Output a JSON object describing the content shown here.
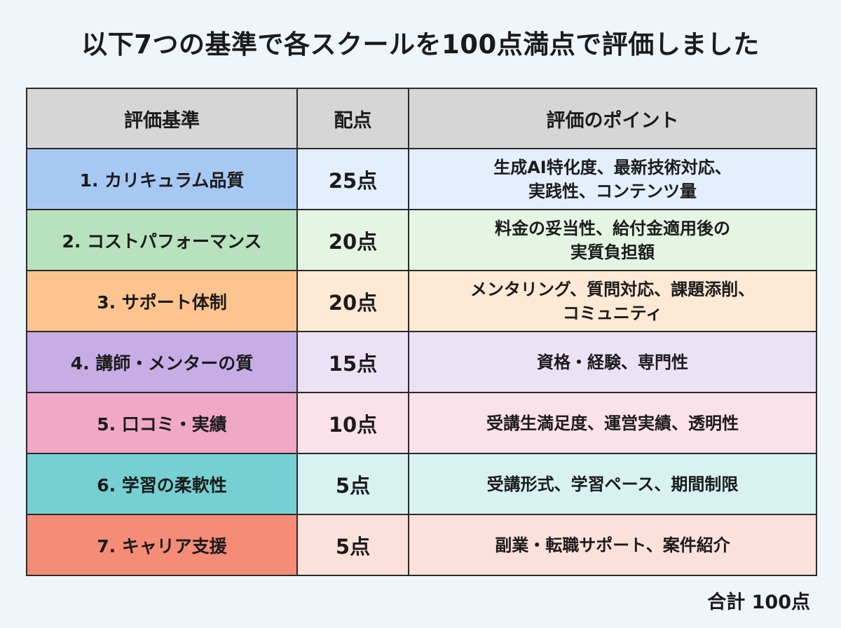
{
  "title": "以下7つの基準で各スクールを100点満点で評価しました",
  "table": {
    "headers": [
      "評価基準",
      "配点",
      "評価のポイント"
    ],
    "rows": [
      {
        "criterion": "1. カリキュラム品質",
        "score": "25点",
        "points_line1": "生成AI特化度、最新技術対応、",
        "points_line2": "実践性、コンテンツ量",
        "color_main": "#a8c8f4",
        "color_light": "#e3effc"
      },
      {
        "criterion": "2. コストパフォーマンス",
        "score": "20点",
        "points_line1": "料金の妥当性、給付金適用後の",
        "points_line2": "実質負担額",
        "color_main": "#b8e2bd",
        "color_light": "#e5f5e4"
      },
      {
        "criterion": "3. サポート体制",
        "score": "20点",
        "points_line1": "メンタリング、質問対応、課題添削、",
        "points_line2": "コミュニティ",
        "color_main": "#fdc48f",
        "color_light": "#fde9d4"
      },
      {
        "criterion": "4. 講師・メンターの質",
        "score": "15点",
        "points_line1": "資格・経験、専門性",
        "points_line2": "",
        "color_main": "#c7ace6",
        "color_light": "#ede1f6"
      },
      {
        "criterion": "5. 口コミ・実績",
        "score": "10点",
        "points_line1": "受講生満足度、運営実績、透明性",
        "points_line2": "",
        "color_main": "#f1a8c7",
        "color_light": "#fbe1ea"
      },
      {
        "criterion": "6. 学習の柔軟性",
        "score": "5点",
        "points_line1": "受講形式、学習ペース、期間制限",
        "points_line2": "",
        "color_main": "#76d0d3",
        "color_light": "#d8f2f2"
      },
      {
        "criterion": "7. キャリア支援",
        "score": "5点",
        "points_line1": "副業・転職サポート、案件紹介",
        "points_line2": "",
        "color_main": "#f58c78",
        "color_light": "#fce1da"
      }
    ]
  },
  "total": "合計 100点",
  "colors": {
    "background": "#eef5fb",
    "header_bg": "#d6d6d6",
    "border": "#2a2a2a"
  }
}
